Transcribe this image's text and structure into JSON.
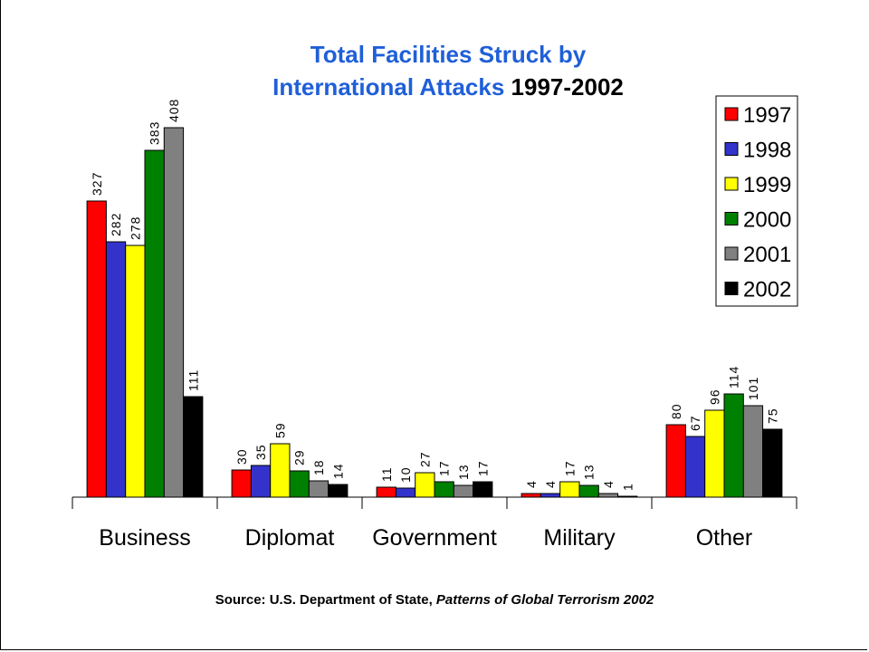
{
  "title": {
    "line1": "Total Facilities Struck by",
    "line2_main": "International Attacks",
    "line2_years": "1997-2002"
  },
  "source": {
    "prefix": "Source: U.S. Department of State, ",
    "publication": "Patterns of Global Terrorism 2002"
  },
  "colors": {
    "title_blue": "#1f5fd8",
    "series": [
      "#ff0000",
      "#3333cc",
      "#ffff00",
      "#008000",
      "#808080",
      "#000000"
    ]
  },
  "chart_data": {
    "type": "bar",
    "title": "Total Facilities Struck by International Attacks 1997-2002",
    "xlabel": "",
    "ylabel": "",
    "categories": [
      "Business",
      "Diplomat",
      "Government",
      "Military",
      "Other"
    ],
    "series": [
      {
        "name": "1997",
        "color": "#ff0000",
        "values": [
          327,
          30,
          11,
          4,
          80
        ]
      },
      {
        "name": "1998",
        "color": "#3333cc",
        "values": [
          282,
          35,
          10,
          4,
          67
        ]
      },
      {
        "name": "1999",
        "color": "#ffff00",
        "values": [
          278,
          59,
          27,
          17,
          96
        ]
      },
      {
        "name": "2000",
        "color": "#008000",
        "values": [
          383,
          29,
          17,
          13,
          114
        ]
      },
      {
        "name": "2001",
        "color": "#808080",
        "values": [
          408,
          18,
          13,
          4,
          101
        ]
      },
      {
        "name": "2002",
        "color": "#000000",
        "values": [
          111,
          14,
          17,
          1,
          75
        ]
      }
    ],
    "ylim": [
      0,
      440
    ],
    "grid": false,
    "legend_position": "top-right",
    "data_labels": true
  }
}
